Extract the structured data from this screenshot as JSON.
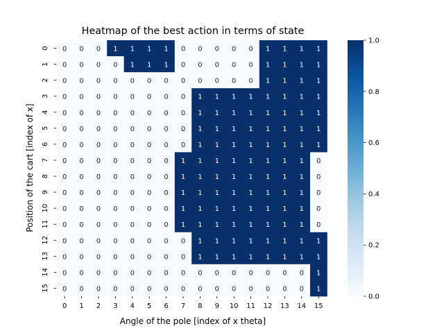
{
  "chart_data": {
    "type": "heatmap",
    "title": "Heatmap of the best action in terms of state",
    "xlabel": "Angle of the pole [index of x theta]",
    "ylabel": "Position of the cart [index of x]",
    "x_ticks": [
      "0",
      "1",
      "2",
      "3",
      "4",
      "5",
      "6",
      "7",
      "8",
      "9",
      "10",
      "11",
      "12",
      "13",
      "14",
      "15"
    ],
    "y_ticks": [
      "0",
      "1",
      "2",
      "3",
      "4",
      "5",
      "6",
      "7",
      "8",
      "9",
      "10",
      "11",
      "12",
      "13",
      "14",
      "15"
    ],
    "values": [
      [
        0,
        0,
        0,
        1,
        1,
        1,
        1,
        0,
        0,
        0,
        0,
        0,
        1,
        1,
        1,
        1
      ],
      [
        0,
        0,
        0,
        0,
        1,
        1,
        1,
        0,
        0,
        0,
        0,
        0,
        1,
        1,
        1,
        1
      ],
      [
        0,
        0,
        0,
        0,
        0,
        0,
        0,
        0,
        0,
        0,
        0,
        0,
        1,
        1,
        1,
        1
      ],
      [
        0,
        0,
        0,
        0,
        0,
        0,
        0,
        0,
        1,
        1,
        1,
        1,
        1,
        1,
        1,
        1
      ],
      [
        0,
        0,
        0,
        0,
        0,
        0,
        0,
        0,
        1,
        1,
        1,
        1,
        1,
        1,
        1,
        1
      ],
      [
        0,
        0,
        0,
        0,
        0,
        0,
        0,
        0,
        1,
        1,
        1,
        1,
        1,
        1,
        1,
        1
      ],
      [
        0,
        0,
        0,
        0,
        0,
        0,
        0,
        0,
        1,
        1,
        1,
        1,
        1,
        1,
        1,
        1
      ],
      [
        0,
        0,
        0,
        0,
        0,
        0,
        0,
        1,
        1,
        1,
        1,
        1,
        1,
        1,
        1,
        0
      ],
      [
        0,
        0,
        0,
        0,
        0,
        0,
        0,
        1,
        1,
        1,
        1,
        1,
        1,
        1,
        1,
        0
      ],
      [
        0,
        0,
        0,
        0,
        0,
        0,
        0,
        1,
        1,
        1,
        1,
        1,
        1,
        1,
        1,
        0
      ],
      [
        0,
        0,
        0,
        0,
        0,
        0,
        0,
        1,
        1,
        1,
        1,
        1,
        1,
        1,
        1,
        0
      ],
      [
        0,
        0,
        0,
        0,
        0,
        0,
        0,
        1,
        1,
        1,
        1,
        1,
        1,
        1,
        1,
        0
      ],
      [
        0,
        0,
        0,
        0,
        0,
        0,
        0,
        0,
        1,
        1,
        1,
        1,
        1,
        1,
        1,
        1
      ],
      [
        0,
        0,
        0,
        0,
        0,
        0,
        0,
        0,
        1,
        1,
        1,
        1,
        1,
        1,
        1,
        1
      ],
      [
        0,
        0,
        0,
        0,
        0,
        0,
        0,
        0,
        0,
        0,
        0,
        0,
        0,
        0,
        0,
        1
      ],
      [
        0,
        0,
        0,
        0,
        0,
        0,
        0,
        0,
        0,
        0,
        0,
        0,
        0,
        0,
        0,
        1
      ]
    ],
    "colorbar": {
      "range": [
        0.0,
        1.0
      ],
      "ticks": [
        "0.0",
        "0.2",
        "0.4",
        "0.6",
        "0.8",
        "1.0"
      ],
      "colormap": "Blues",
      "low_color": "#f7fbff",
      "high_color": "#08306b"
    },
    "annotations": true,
    "annotation_color_low": "#262626",
    "annotation_color_high": "#ffffff",
    "grid": false
  }
}
